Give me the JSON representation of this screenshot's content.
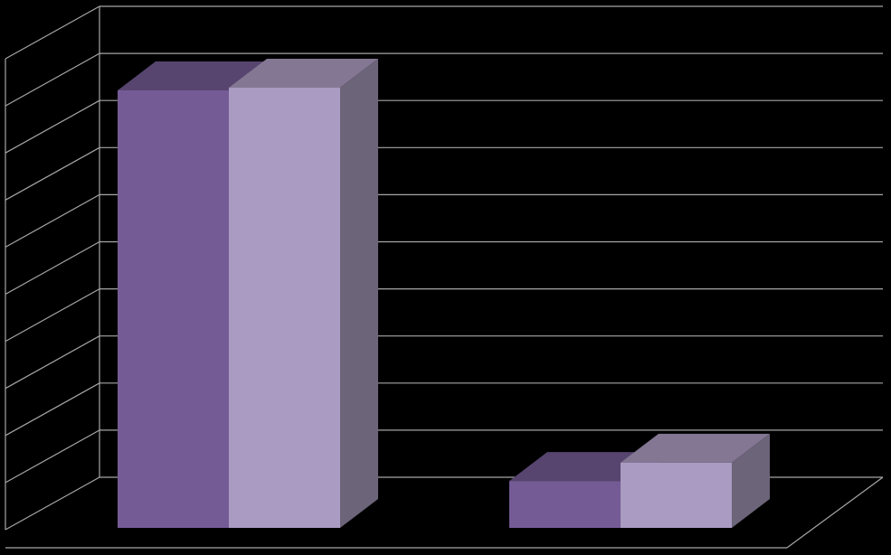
{
  "chart_data": {
    "type": "bar",
    "style": "3d-clustered-column",
    "categories": [
      "",
      ""
    ],
    "series": [
      {
        "values": [
          84,
          9
        ]
      },
      {
        "values": [
          84,
          12
        ]
      }
    ],
    "ylim": [
      0,
      100
    ],
    "gridlines": 10,
    "grid": true,
    "legend": "none",
    "title": "",
    "xlabel": "",
    "ylabel": ""
  },
  "colors": {
    "background": "#000000",
    "grid": "#a6a6a6",
    "series_1_front": "#755b96",
    "series_1_top": "#574570",
    "series_1_side": "#4a3a60",
    "series_2_front": "#a99bc1",
    "series_2_top": "#837793",
    "series_2_side": "#6c6479"
  }
}
